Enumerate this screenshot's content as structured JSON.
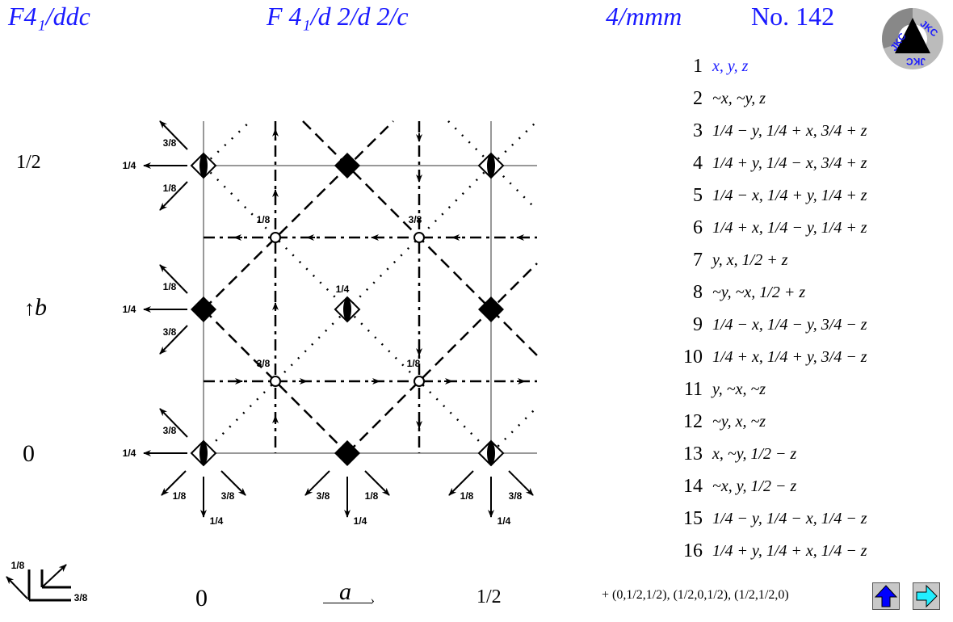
{
  "header": {
    "short_symbol": "F4₁/ddc",
    "full_symbol": "F 4₁/d 2/d 2/c",
    "point_group": "4/mmm",
    "number": "No. 142"
  },
  "logo": {
    "text": "JKC"
  },
  "axes": {
    "y_top": "1/2",
    "b_label": "b",
    "y_bottom": "0",
    "x_left": "0",
    "a_label": "a",
    "x_right": "1/2"
  },
  "positions": [
    {
      "n": "1",
      "expr": "x, y, z"
    },
    {
      "n": "2",
      "expr": "~x, ~y, z"
    },
    {
      "n": "3",
      "expr": "1/4 − y, 1/4 + x, 3/4 + z"
    },
    {
      "n": "4",
      "expr": "1/4 + y, 1/4 − x, 3/4 + z"
    },
    {
      "n": "5",
      "expr": "1/4 − x, 1/4 + y, 1/4 + z"
    },
    {
      "n": "6",
      "expr": "1/4 + x, 1/4 − y, 1/4 + z"
    },
    {
      "n": "7",
      "expr": "y, x, 1/2 + z"
    },
    {
      "n": "8",
      "expr": "~y, ~x, 1/2 + z"
    },
    {
      "n": "9",
      "expr": "1/4 − x, 1/4 − y, 3/4 − z"
    },
    {
      "n": "10",
      "expr": "1/4 + x, 1/4 + y, 3/4 − z"
    },
    {
      "n": "11",
      "expr": "y, ~x, ~z"
    },
    {
      "n": "12",
      "expr": "~y, x, ~z"
    },
    {
      "n": "13",
      "expr": "x, ~y, 1/2 − z"
    },
    {
      "n": "14",
      "expr": "~x, y, 1/2 − z"
    },
    {
      "n": "15",
      "expr": "1/4 − y, 1/4 − x, 1/4 − z"
    },
    {
      "n": "16",
      "expr": "1/4 + y, 1/4 + x, 1/4 − z"
    }
  ],
  "centering": "+ (0,1/2,1/2), (1/2,0,1/2), (1/2,1/2,0)",
  "buttons": {
    "up_icon": "arrow-up-icon",
    "up_color": "#0000ff",
    "next_icon": "arrow-right-icon",
    "next_color": "#22eeff"
  },
  "diagram_labels": {
    "circles": [
      "1/8",
      "3/8",
      "1/4",
      "3/8",
      "1/8"
    ],
    "left_side": [
      "1/4",
      "3/8",
      "1/8",
      "1/4",
      "1/8",
      "3/8",
      "1/4",
      "3/8"
    ],
    "bottom": [
      "1/8",
      "1/4",
      "3/8",
      "3/8",
      "1/4",
      "1/8",
      "1/8",
      "1/4",
      "3/8"
    ],
    "legend": [
      "1/8",
      "3/8"
    ]
  },
  "colors": {
    "title": "#1a1aff",
    "grid": "#777777"
  }
}
